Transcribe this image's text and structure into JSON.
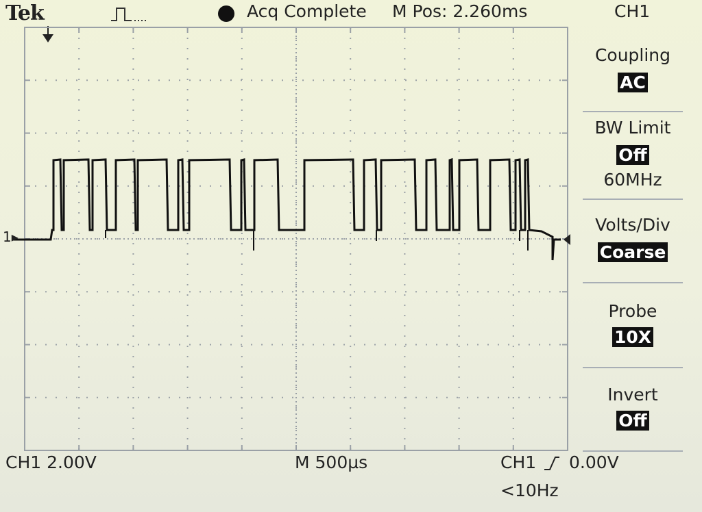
{
  "header": {
    "brand": "Tek",
    "trigger_status_icon": "pulse-trigger-icon",
    "acq_status": "Acq Complete",
    "m_pos": "M Pos: 2.260ms",
    "channel": "CH1"
  },
  "menu": {
    "items": [
      {
        "label": "Coupling",
        "value": "AC"
      },
      {
        "label": "BW Limit",
        "value": "Off",
        "sub": "60MHz"
      },
      {
        "label": "Volts/Div",
        "value": "Coarse"
      },
      {
        "label": "Probe",
        "value": "10X"
      },
      {
        "label": "Invert",
        "value": "Off"
      }
    ]
  },
  "graticule": {
    "channel_marker": "1",
    "divisions_x": 10,
    "divisions_y": 8
  },
  "status_bar": {
    "ch_scale": "CH1  2.00V",
    "timebase": "M 500µs",
    "trigger_source": "CH1",
    "trigger_level": "0.00V",
    "trigger_freq": "<10Hz"
  },
  "colors": {
    "background": "#eef0dc",
    "trace": "#111111",
    "grid": "#9aa0a6",
    "highlight_bg": "#111111",
    "highlight_fg": "#ffffff"
  }
}
